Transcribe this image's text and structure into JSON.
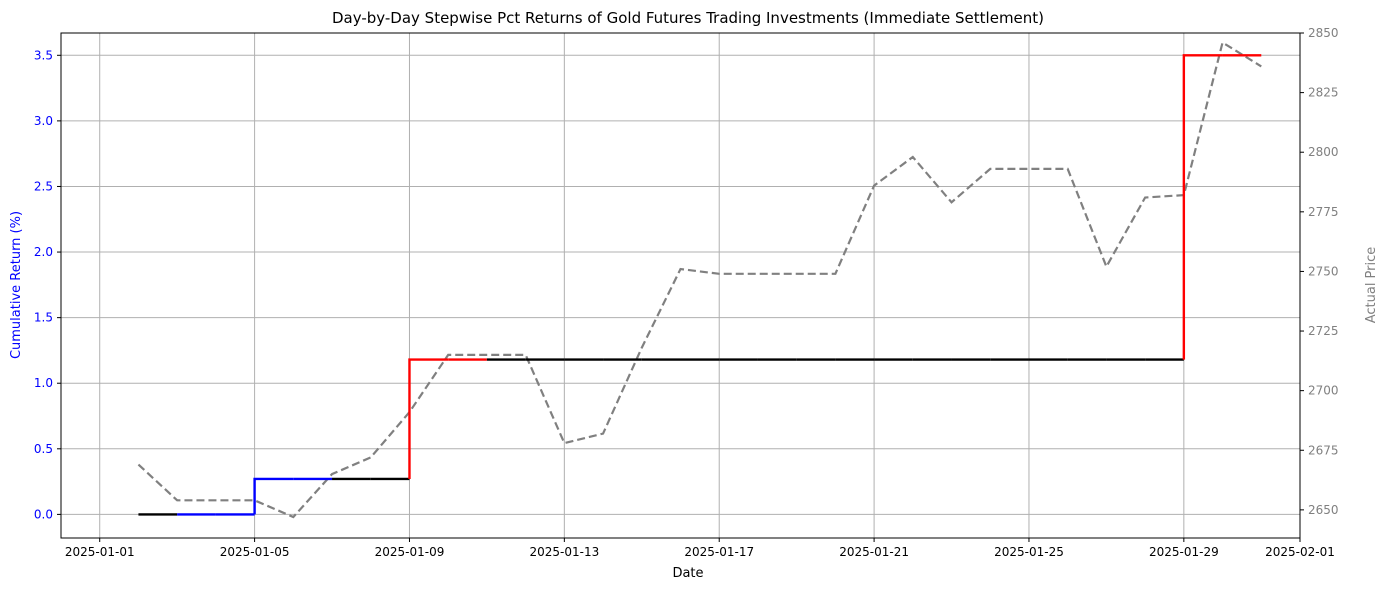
{
  "chart_data": {
    "type": "line",
    "title": "Day-by-Day Stepwise Pct Returns of Gold Futures Trading Investments (Immediate Settlement)",
    "xlabel": "Date",
    "ylabel_left": "Cumulative Return (%)",
    "ylabel_right": "Actual Price",
    "x_ticks": [
      "2025-01-01",
      "2025-01-05",
      "2025-01-09",
      "2025-01-13",
      "2025-01-17",
      "2025-01-21",
      "2025-01-25",
      "2025-01-29",
      "2025-02-01"
    ],
    "y_ticks_left": [
      "0.0",
      "0.5",
      "1.0",
      "1.5",
      "2.0",
      "2.5",
      "3.0",
      "3.5"
    ],
    "y_ticks_right": [
      "2650",
      "2675",
      "2700",
      "2725",
      "2750",
      "2775",
      "2800",
      "2825",
      "2850"
    ],
    "xlim": [
      "2024-12-31",
      "2025-02-01"
    ],
    "ylim_left": [
      -0.18,
      3.67
    ],
    "ylim_right": [
      2638.2,
      2850
    ],
    "grid": true,
    "colors": {
      "return_positive": "#ff0000",
      "return_negative": "#0000ff",
      "return_flat": "#000000",
      "price": "#808080",
      "left_axis_text": "#0000ff",
      "right_axis_text": "#808080"
    },
    "return_series": {
      "name": "",
      "style": "step",
      "x": [
        "2025-01-02",
        "2025-01-03",
        "2025-01-04",
        "2025-01-05",
        "2025-01-06",
        "2025-01-07",
        "2025-01-08",
        "2025-01-09",
        "2025-01-10",
        "2025-01-11",
        "2025-01-12",
        "2025-01-13",
        "2025-01-14",
        "2025-01-15",
        "2025-01-16",
        "2025-01-17",
        "2025-01-18",
        "2025-01-19",
        "2025-01-20",
        "2025-01-21",
        "2025-01-22",
        "2025-01-23",
        "2025-01-24",
        "2025-01-25",
        "2025-01-26",
        "2025-01-27",
        "2025-01-28",
        "2025-01-29",
        "2025-01-30",
        "2025-01-31"
      ],
      "values": [
        0,
        0,
        0,
        0,
        0.27,
        0.27,
        0.27,
        0.27,
        1.18,
        1.18,
        1.18,
        1.18,
        1.18,
        1.18,
        1.18,
        1.18,
        1.18,
        1.18,
        1.18,
        1.18,
        1.18,
        1.18,
        1.18,
        1.18,
        1.18,
        1.18,
        1.18,
        1.18,
        3.5,
        3.5
      ],
      "segment_colors": [
        "#000000",
        "#0000ff",
        "#0000ff",
        "#0000ff",
        "#0000ff",
        "#000000",
        "#000000",
        "#ff0000",
        "#ff0000",
        "#000000",
        "#000000",
        "#000000",
        "#000000",
        "#000000",
        "#000000",
        "#000000",
        "#000000",
        "#000000",
        "#000000",
        "#000000",
        "#000000",
        "#000000",
        "#000000",
        "#000000",
        "#000000",
        "#000000",
        "#000000",
        "#ff0000",
        "#ff0000"
      ]
    },
    "price_series": {
      "name": "",
      "style": "dashed",
      "x": [
        "2025-01-02",
        "2025-01-03",
        "2025-01-04",
        "2025-01-05",
        "2025-01-06",
        "2025-01-07",
        "2025-01-08",
        "2025-01-09",
        "2025-01-10",
        "2025-01-11",
        "2025-01-12",
        "2025-01-13",
        "2025-01-14",
        "2025-01-15",
        "2025-01-16",
        "2025-01-17",
        "2025-01-18",
        "2025-01-19",
        "2025-01-20",
        "2025-01-21",
        "2025-01-22",
        "2025-01-23",
        "2025-01-24",
        "2025-01-25",
        "2025-01-26",
        "2025-01-27",
        "2025-01-28",
        "2025-01-29",
        "2025-01-30",
        "2025-01-31"
      ],
      "values": [
        2669,
        2654,
        2654,
        2654,
        2647,
        2665,
        2672,
        2691,
        2715,
        2715,
        2715,
        2678,
        2682,
        2718,
        2751,
        2749,
        2749,
        2749,
        2749,
        2786,
        2798,
        2779,
        2793,
        2793,
        2793,
        2752,
        2781,
        2782,
        2846,
        2836
      ]
    }
  }
}
